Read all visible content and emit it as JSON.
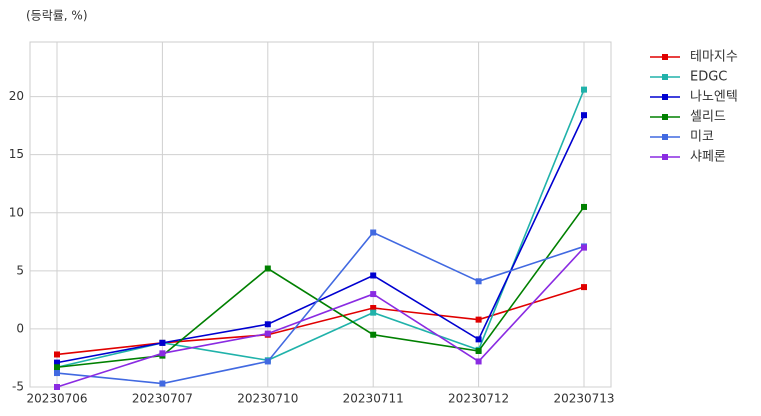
{
  "chart_data": {
    "type": "line",
    "y_label": "(등락률, %)",
    "categories": [
      "20230706",
      "20230707",
      "20230710",
      "20230711",
      "20230712",
      "20230713"
    ],
    "series": [
      {
        "name": "테마지수",
        "color": "#e00000",
        "values": [
          -2.2,
          -1.2,
          -0.5,
          1.8,
          0.8,
          3.6
        ]
      },
      {
        "name": "EDGC",
        "color": "#20b2aa",
        "values": [
          -3.3,
          -1.2,
          -2.7,
          1.4,
          -1.8,
          20.6
        ]
      },
      {
        "name": "나노엔텍",
        "color": "#0000d0",
        "values": [
          -2.9,
          -1.2,
          0.4,
          4.6,
          -0.9,
          18.4
        ]
      },
      {
        "name": "셀리드",
        "color": "#008000",
        "values": [
          -3.3,
          -2.3,
          5.2,
          -0.5,
          -1.9,
          10.5
        ]
      },
      {
        "name": "미코",
        "color": "#4169e1",
        "values": [
          -3.8,
          -4.7,
          -2.8,
          8.3,
          4.1,
          7.1
        ]
      },
      {
        "name": "샤페론",
        "color": "#8a2be2",
        "values": [
          -5.0,
          -2.1,
          -0.4,
          3.0,
          -2.8,
          7.0
        ]
      }
    ],
    "ylim": [
      -5,
      24.7
    ],
    "yticks": [
      -5,
      0,
      5,
      10,
      15,
      20
    ],
    "grid": true,
    "legend": "right"
  }
}
